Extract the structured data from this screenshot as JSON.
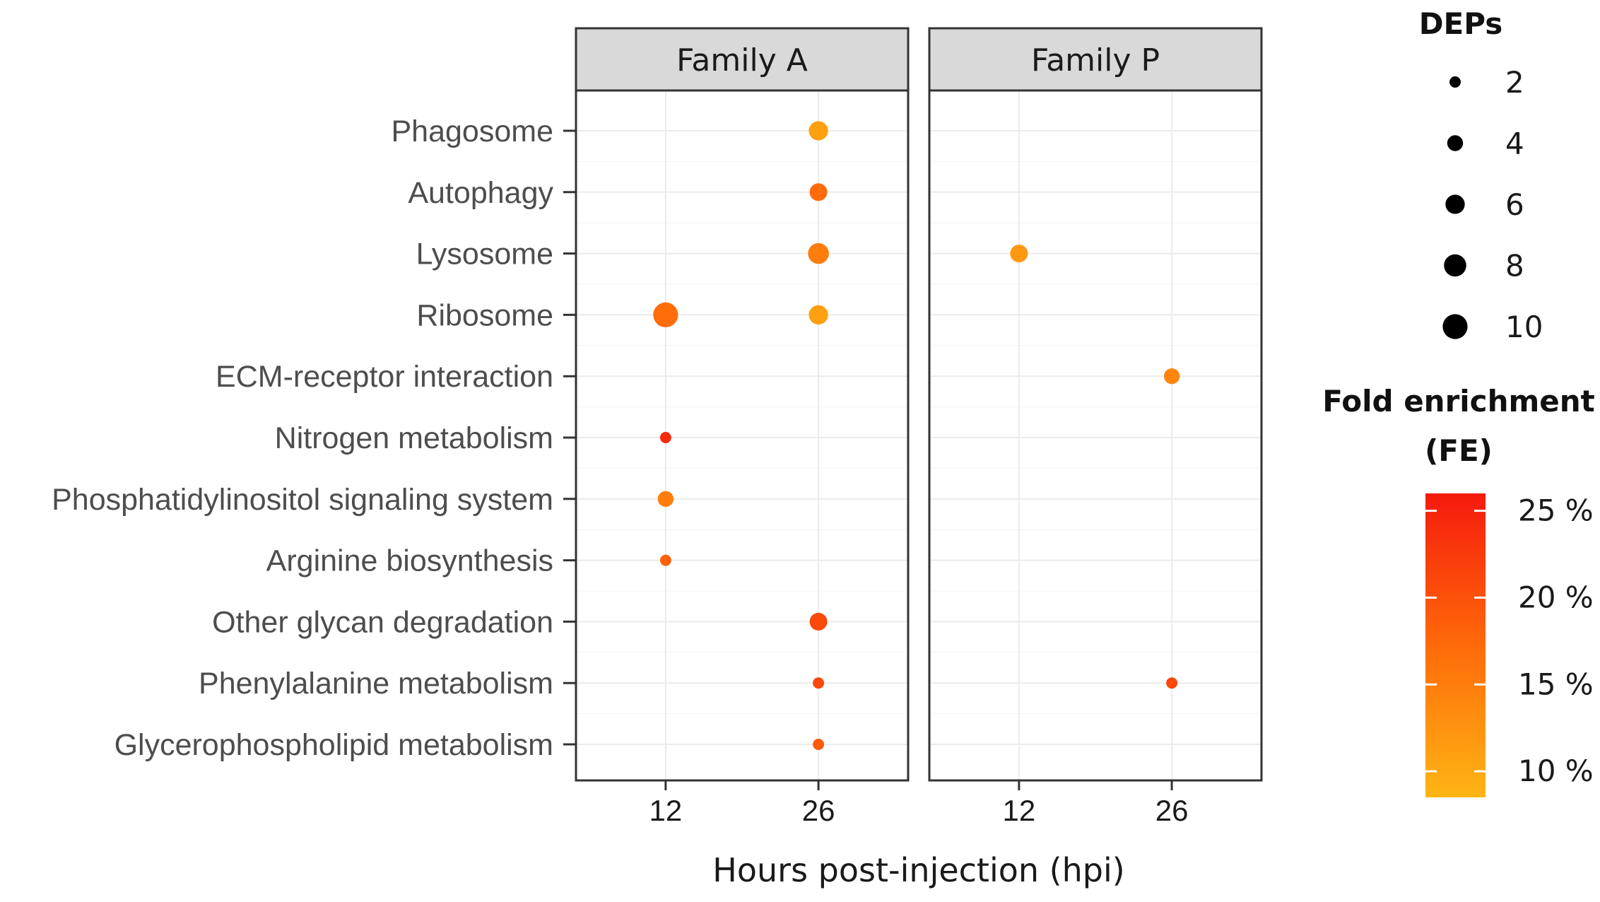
{
  "chart_data": {
    "type": "scatter",
    "subtype": "dot-plot",
    "xlabel": "Hours post-injection (hpi)",
    "x_ticks": [
      "12",
      "26"
    ],
    "categories": [
      "Phagosome",
      "Autophagy",
      "Lysosome",
      "Ribosome",
      "ECM-receptor interaction",
      "Nitrogen metabolism",
      "Phosphatidylinositol signaling system",
      "Arginine biosynthesis",
      "Other glycan degradation",
      "Phenylalanine metabolism",
      "Glycerophospholipid metabolism"
    ],
    "facets": [
      {
        "name": "Family A",
        "points": [
          {
            "pathway": "Phagosome",
            "hpi": "26",
            "deps": 6,
            "fe": 11
          },
          {
            "pathway": "Autophagy",
            "hpi": "26",
            "deps": 5,
            "fe": 17
          },
          {
            "pathway": "Lysosome",
            "hpi": "26",
            "deps": 7,
            "fe": 15
          },
          {
            "pathway": "Ribosome",
            "hpi": "12",
            "deps": 10,
            "fe": 17
          },
          {
            "pathway": "Ribosome",
            "hpi": "26",
            "deps": 6,
            "fe": 11
          },
          {
            "pathway": "Nitrogen metabolism",
            "hpi": "12",
            "deps": 2,
            "fe": 24
          },
          {
            "pathway": "Phosphatidylinositol signaling system",
            "hpi": "12",
            "deps": 4,
            "fe": 15
          },
          {
            "pathway": "Arginine biosynthesis",
            "hpi": "12",
            "deps": 2,
            "fe": 18
          },
          {
            "pathway": "Other glycan degradation",
            "hpi": "26",
            "deps": 5,
            "fe": 21
          },
          {
            "pathway": "Phenylalanine metabolism",
            "hpi": "26",
            "deps": 2,
            "fe": 21
          },
          {
            "pathway": "Glycerophospholipid metabolism",
            "hpi": "26",
            "deps": 2,
            "fe": 19
          }
        ]
      },
      {
        "name": "Family P",
        "points": [
          {
            "pathway": "Lysosome",
            "hpi": "12",
            "deps": 5,
            "fe": 12
          },
          {
            "pathway": "ECM-receptor interaction",
            "hpi": "26",
            "deps": 4,
            "fe": 14
          },
          {
            "pathway": "Phenylalanine metabolism",
            "hpi": "26",
            "deps": 2,
            "fe": 21
          }
        ]
      }
    ],
    "size_legend": {
      "title": "DEPs",
      "values": [
        2,
        4,
        6,
        8,
        10
      ],
      "labels": [
        "2",
        "4",
        "6",
        "8",
        "10"
      ]
    },
    "color_legend": {
      "title_line1": "Fold enrichment",
      "title_line2": "(FE)",
      "range": [
        8.5,
        26
      ],
      "ticks": [
        25,
        20,
        15,
        10
      ],
      "tick_labels": [
        "25 %",
        "20 %",
        "15 %",
        "10 %"
      ],
      "low_color": "#FFB515",
      "mid_color": "#FF6A0A",
      "high_color": "#F51A0C"
    }
  }
}
